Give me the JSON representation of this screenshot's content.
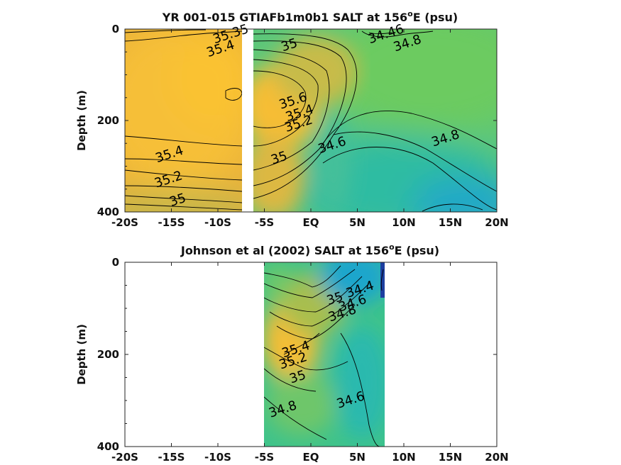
{
  "chart_data": [
    {
      "type": "heatmap",
      "title": "YR 001-015 GTIAFb1m0b1 SALT at 156",
      "title_sup": "o",
      "title_tail": "E (psu)",
      "ylabel": "Depth (m)",
      "xlim": [
        -20,
        20
      ],
      "ylim": [
        0,
        400
      ],
      "y_reversed": true,
      "xticks": [
        -20,
        -15,
        -10,
        -5,
        0,
        5,
        10,
        15,
        20
      ],
      "xtick_labels": [
        "-20S",
        "-15S",
        "-10S",
        "-5S",
        "EQ",
        "5N",
        "10N",
        "15N",
        "20N"
      ],
      "yticks": [
        0,
        200,
        400
      ],
      "ytick_labels": [
        "0",
        "200",
        "400"
      ],
      "data_gap": [
        -7.5,
        -6.5
      ],
      "contour_labels": [
        {
          "text": "35.35",
          "x": -8.6,
          "y": 12
        },
        {
          "text": "35.4",
          "x": -9.7,
          "y": 44
        },
        {
          "text": "35",
          "x": -2.3,
          "y": 36
        },
        {
          "text": "34.46",
          "x": 8.1,
          "y": 12
        },
        {
          "text": "34.8",
          "x": 10.4,
          "y": 32
        },
        {
          "text": "35.6",
          "x": -1.9,
          "y": 158
        },
        {
          "text": "35.4",
          "x": -1.2,
          "y": 185
        },
        {
          "text": "35.2",
          "x": -1.3,
          "y": 208
        },
        {
          "text": "34.8",
          "x": 14.5,
          "y": 240
        },
        {
          "text": "34.6",
          "x": 2.3,
          "y": 255
        },
        {
          "text": "35.4",
          "x": -15.2,
          "y": 275
        },
        {
          "text": "35",
          "x": -3.4,
          "y": 283
        },
        {
          "text": "35.2",
          "x": -15.3,
          "y": 330
        },
        {
          "text": "35",
          "x": -14.3,
          "y": 375
        }
      ]
    },
    {
      "type": "heatmap",
      "title": "Johnson et al (2002) SALT at 156",
      "title_sup": "o",
      "title_tail": "E (psu)",
      "ylabel": "Depth (m)",
      "xlim": [
        -20,
        20
      ],
      "ylim": [
        0,
        400
      ],
      "y_reversed": true,
      "xticks": [
        -20,
        -15,
        -10,
        -5,
        0,
        5,
        10,
        15,
        20
      ],
      "xtick_labels": [
        "-20S",
        "-15S",
        "-10S",
        "-5S",
        "EQ",
        "5N",
        "10N",
        "15N",
        "20N"
      ],
      "yticks": [
        0,
        200,
        400
      ],
      "ytick_labels": [
        "0",
        "200",
        "400"
      ],
      "data_extent": [
        -5,
        8
      ],
      "contour_labels": [
        {
          "text": "34.4",
          "x": 5.3,
          "y": 60
        },
        {
          "text": "34.6",
          "x": 4.5,
          "y": 90
        },
        {
          "text": "35",
          "x": 2.6,
          "y": 80
        },
        {
          "text": "34.8",
          "x": 3.4,
          "y": 112
        },
        {
          "text": "35.4",
          "x": -1.6,
          "y": 190
        },
        {
          "text": "35.2",
          "x": -1.9,
          "y": 215
        },
        {
          "text": "35",
          "x": -1.4,
          "y": 250
        },
        {
          "text": "34.6",
          "x": 4.3,
          "y": 300
        },
        {
          "text": "34.8",
          "x": -3.0,
          "y": 320
        }
      ]
    }
  ]
}
